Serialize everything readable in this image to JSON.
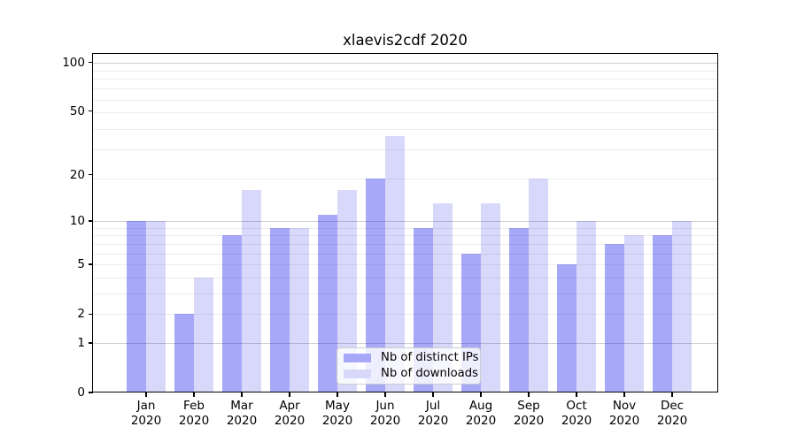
{
  "chart_data": {
    "type": "bar",
    "title": "xlaevis2cdf 2020",
    "categories": [
      "Jan",
      "Feb",
      "Mar",
      "Apr",
      "May",
      "Jun",
      "Jul",
      "Aug",
      "Sep",
      "Oct",
      "Nov",
      "Dec"
    ],
    "category_year": "2020",
    "series": [
      {
        "name": "Nb of distinct IPs",
        "color": "#a8a8f8",
        "values": [
          10,
          2,
          8,
          9,
          11,
          19,
          9,
          6,
          9,
          5,
          7,
          8
        ]
      },
      {
        "name": "Nb of downloads",
        "color": "#d8d8fa",
        "values": [
          10,
          4,
          16,
          9,
          16,
          35,
          13,
          13,
          19,
          10,
          8,
          10
        ]
      }
    ],
    "yscale": "log1p",
    "yticks": [
      0,
      1,
      2,
      5,
      10,
      20,
      50,
      100
    ],
    "ylim": [
      0,
      113
    ],
    "xlabel": "",
    "ylabel": "",
    "grid": true,
    "legend_position": "lower center inside"
  },
  "colors": {
    "background": "#ffffff",
    "text": "#000000",
    "axis": "#000000",
    "grid_minor": "#ececec",
    "grid_major": "#cfcfcf",
    "legend_border": "#cccccc"
  }
}
